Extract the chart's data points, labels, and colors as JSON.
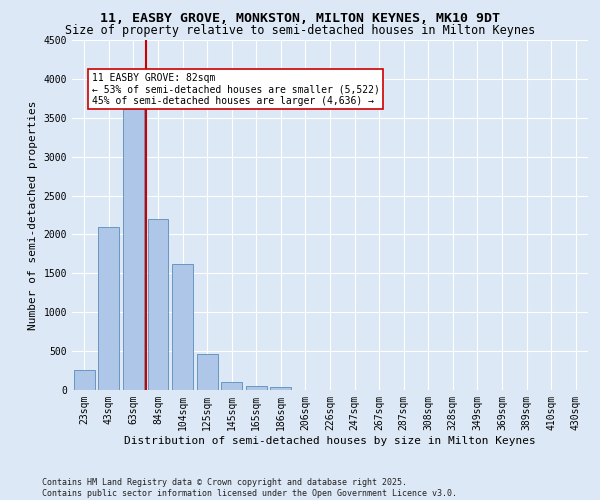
{
  "title_line1": "11, EASBY GROVE, MONKSTON, MILTON KEYNES, MK10 9DT",
  "title_line2": "Size of property relative to semi-detached houses in Milton Keynes",
  "xlabel": "Distribution of semi-detached houses by size in Milton Keynes",
  "ylabel": "Number of semi-detached properties",
  "footnote": "Contains HM Land Registry data © Crown copyright and database right 2025.\nContains public sector information licensed under the Open Government Licence v3.0.",
  "bar_labels": [
    "23sqm",
    "43sqm",
    "63sqm",
    "84sqm",
    "104sqm",
    "125sqm",
    "145sqm",
    "165sqm",
    "186sqm",
    "206sqm",
    "226sqm",
    "247sqm",
    "267sqm",
    "287sqm",
    "308sqm",
    "328sqm",
    "349sqm",
    "369sqm",
    "389sqm",
    "410sqm",
    "430sqm"
  ],
  "bar_values": [
    255,
    2100,
    3610,
    2200,
    1620,
    460,
    105,
    55,
    35,
    0,
    0,
    0,
    0,
    0,
    0,
    0,
    0,
    0,
    0,
    0,
    0
  ],
  "bar_color": "#aec6e8",
  "bar_edge_color": "#5b8db8",
  "ylim": [
    0,
    4500
  ],
  "yticks": [
    0,
    500,
    1000,
    1500,
    2000,
    2500,
    3000,
    3500,
    4000,
    4500
  ],
  "vline_color": "#cc0000",
  "annotation_text": "11 EASBY GROVE: 82sqm\n← 53% of semi-detached houses are smaller (5,522)\n45% of semi-detached houses are larger (4,636) →",
  "bg_color": "#dce8f5",
  "plot_bg_color": "#dce8f5",
  "grid_color": "#ffffff",
  "title_fontsize": 9.5,
  "subtitle_fontsize": 8.5,
  "axis_label_fontsize": 8,
  "tick_fontsize": 7,
  "annotation_fontsize": 7,
  "footnote_fontsize": 6
}
